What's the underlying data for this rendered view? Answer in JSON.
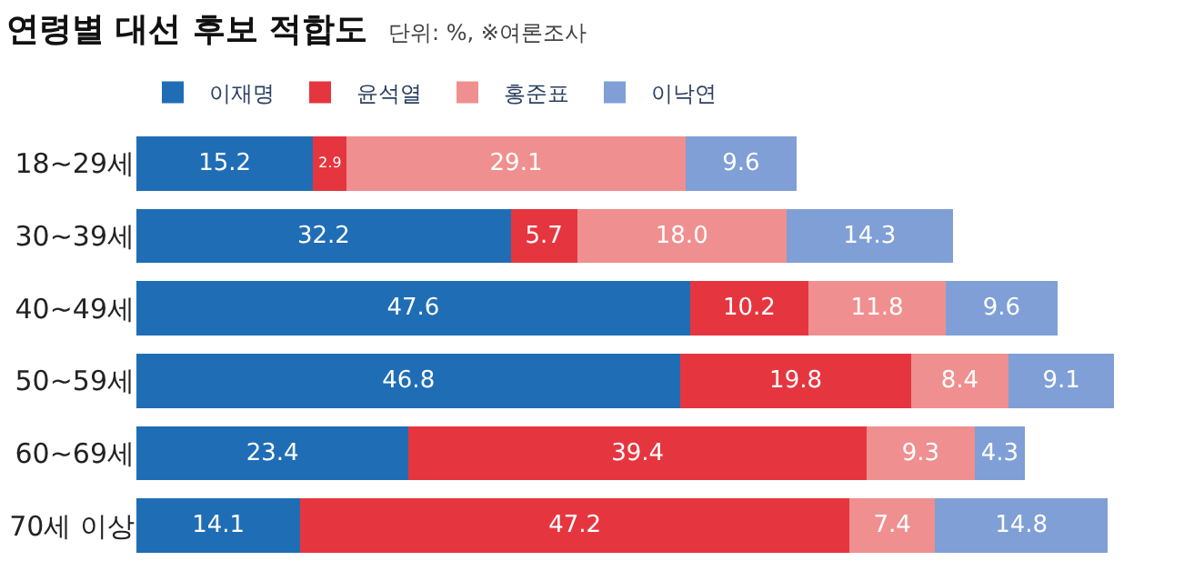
{
  "chart_data": {
    "type": "bar",
    "orientation": "horizontal",
    "stacked": true,
    "title": "연령별 대선 후보 적합도",
    "subtitle": "단위: %, ※여론조사",
    "categories": [
      "18~29세",
      "30~39세",
      "40~49세",
      "50~59세",
      "60~69세",
      "70세 이상"
    ],
    "series": [
      {
        "name": "이재명",
        "color": "#1f6db5",
        "values": [
          15.2,
          32.2,
          47.6,
          46.8,
          23.4,
          14.1
        ],
        "value_labels": [
          "15.2",
          "32.2",
          "47.6",
          "46.8",
          "23.4",
          "14.1"
        ]
      },
      {
        "name": "윤석열",
        "color": "#e5363f",
        "values": [
          2.9,
          5.7,
          10.2,
          19.8,
          39.4,
          47.2
        ],
        "value_labels": [
          "2.9",
          "5.7",
          "10.2",
          "19.8",
          "39.4",
          "47.2"
        ]
      },
      {
        "name": "홍준표",
        "color": "#f08f8f",
        "values": [
          29.1,
          18.0,
          11.8,
          8.4,
          9.3,
          7.4
        ],
        "value_labels": [
          "29.1",
          "18.0",
          "11.8",
          "8.4",
          "9.3",
          "7.4"
        ]
      },
      {
        "name": "이낙연",
        "color": "#7f9fd6",
        "values": [
          9.6,
          14.3,
          9.6,
          9.1,
          4.3,
          14.8
        ],
        "value_labels": [
          "9.6",
          "14.3",
          "9.6",
          "9.1",
          "4.3",
          "14.8"
        ]
      }
    ],
    "legend": "top left",
    "tick_labels": "y"
  }
}
